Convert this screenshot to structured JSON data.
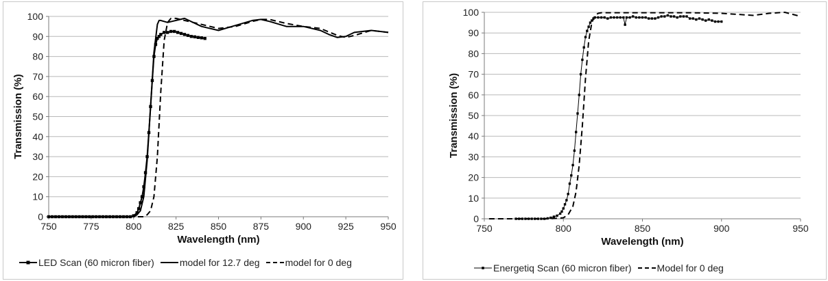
{
  "chart_data": [
    {
      "type": "line",
      "xlabel": "Wavelength (nm)",
      "ylabel": "Transmission (%)",
      "xlim": [
        750,
        950
      ],
      "ylim": [
        0,
        100
      ],
      "xticks": [
        750,
        775,
        800,
        825,
        850,
        875,
        900,
        925,
        950
      ],
      "yticks": [
        0,
        10,
        20,
        30,
        40,
        50,
        60,
        70,
        80,
        90,
        100
      ],
      "grid": "horizontal",
      "legend_position": "bottom",
      "series": [
        {
          "name": "LED Scan (60 micron fiber)",
          "style": "solid-markers",
          "color": "#000000",
          "x": [
            750,
            752,
            754,
            756,
            758,
            760,
            762,
            764,
            766,
            768,
            770,
            772,
            774,
            776,
            778,
            780,
            782,
            784,
            786,
            788,
            790,
            792,
            794,
            796,
            798,
            800,
            802,
            803,
            804,
            805,
            806,
            807,
            808,
            809,
            810,
            811,
            812,
            813,
            814,
            815,
            816,
            818,
            820,
            822,
            824,
            826,
            828,
            830,
            832,
            834,
            836,
            838,
            840,
            842
          ],
          "y": [
            0,
            0,
            0,
            0,
            0,
            0,
            0,
            0,
            0,
            0,
            0,
            0,
            0,
            0,
            0,
            0,
            0,
            0,
            0,
            0,
            0,
            0,
            0,
            0,
            0,
            0.5,
            2,
            4,
            7,
            10,
            15,
            22,
            30,
            42,
            55,
            68,
            80,
            86,
            89,
            90,
            91,
            92,
            92,
            92.5,
            92.5,
            92,
            91.5,
            91,
            90.5,
            90,
            89.8,
            89.5,
            89.3,
            89
          ]
        },
        {
          "name": "model for 12.7 deg",
          "style": "solid",
          "color": "#000000",
          "x": [
            750,
            800,
            802,
            804,
            806,
            808,
            810,
            812,
            814,
            815,
            816,
            820,
            825,
            830,
            840,
            850,
            860,
            870,
            875,
            880,
            890,
            900,
            910,
            915,
            920,
            925,
            930,
            940,
            950
          ],
          "y": [
            0,
            0,
            1,
            3,
            10,
            28,
            55,
            82,
            96,
            98,
            98,
            97,
            98,
            99,
            95,
            93,
            95.5,
            98,
            98.5,
            97.5,
            95,
            95,
            93,
            91,
            89.5,
            90,
            92,
            93,
            92
          ]
        },
        {
          "name": "model for 0 deg",
          "style": "dashed",
          "color": "#000000",
          "x": [
            750,
            800,
            806,
            808,
            810,
            812,
            814,
            816,
            818,
            820,
            822,
            825,
            830,
            840,
            850,
            860,
            870,
            875,
            880,
            890,
            900,
            910,
            920,
            925,
            930,
            940,
            950
          ],
          "y": [
            0,
            0,
            0,
            1,
            3,
            10,
            30,
            62,
            88,
            97,
            99,
            99,
            98,
            96,
            94,
            95,
            97.5,
            98.5,
            98.5,
            96.5,
            95,
            94,
            90.5,
            89.5,
            90.5,
            93,
            92
          ]
        }
      ]
    },
    {
      "type": "line",
      "xlabel": "Wavelength (nm)",
      "ylabel": "Transmission (%)",
      "xlim": [
        750,
        950
      ],
      "ylim": [
        0,
        100
      ],
      "xticks": [
        750,
        800,
        850,
        900,
        950
      ],
      "yticks": [
        0,
        10,
        20,
        30,
        40,
        50,
        60,
        70,
        80,
        90,
        100
      ],
      "grid": "horizontal",
      "legend_position": "bottom",
      "series": [
        {
          "name": "Energetiq Scan (60 micron fiber)",
          "style": "thin-markers",
          "color": "#000000",
          "x": [
            770,
            772,
            774,
            776,
            778,
            780,
            782,
            784,
            786,
            788,
            790,
            792,
            794,
            796,
            798,
            799,
            800,
            801,
            802,
            803,
            804,
            805,
            806,
            807,
            808,
            809,
            810,
            811,
            812,
            813,
            814,
            815,
            816,
            817,
            818,
            819,
            820,
            822,
            824,
            826,
            828,
            830,
            832,
            834,
            836,
            838,
            839,
            840,
            842,
            844,
            846,
            848,
            850,
            852,
            854,
            856,
            858,
            860,
            862,
            864,
            866,
            868,
            870,
            872,
            874,
            876,
            878,
            880,
            882,
            884,
            886,
            888,
            890,
            892,
            894,
            896,
            898,
            900
          ],
          "y": [
            0,
            0,
            0,
            0,
            0,
            0,
            0,
            0,
            0,
            0,
            0.2,
            0.5,
            1,
            1.5,
            2.5,
            3.5,
            5,
            7,
            9,
            12,
            17,
            21,
            26,
            33,
            42,
            51,
            60,
            70,
            77,
            83,
            88,
            91,
            93,
            95,
            96,
            97,
            97.5,
            97.5,
            97.5,
            97.5,
            97,
            97.5,
            97.5,
            97.5,
            97.5,
            97.5,
            94,
            97.5,
            97.5,
            98,
            97.5,
            97.5,
            97.5,
            97.5,
            97,
            97,
            97,
            97.5,
            98,
            98,
            98.5,
            98,
            98,
            97.5,
            98,
            98,
            98,
            97,
            97,
            96.5,
            97,
            96.5,
            96,
            96.5,
            96,
            95.5,
            95.5,
            95.5
          ]
        },
        {
          "name": "Model for 0 deg",
          "style": "dashed",
          "color": "#000000",
          "x": [
            753,
            790,
            795,
            800,
            803,
            806,
            808,
            810,
            812,
            814,
            816,
            818,
            820,
            822,
            824,
            830,
            850,
            880,
            900,
            920,
            930,
            940,
            950
          ],
          "y": [
            0,
            0,
            0.2,
            0.5,
            2,
            6,
            13,
            26,
            45,
            68,
            86,
            95,
            98.5,
            99.5,
            99.8,
            99.8,
            99.8,
            99.8,
            99.5,
            98.5,
            99.5,
            100,
            98
          ]
        }
      ]
    }
  ]
}
